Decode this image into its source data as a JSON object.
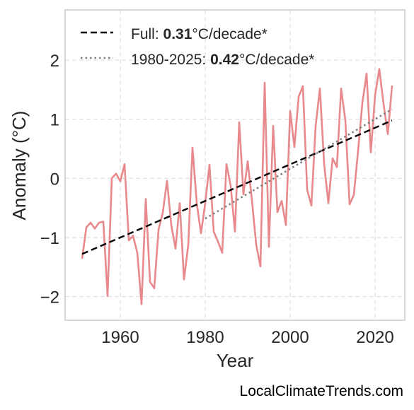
{
  "chart_data": {
    "type": "line",
    "xlabel": "Year",
    "ylabel": "Anomaly (°C)",
    "xlim": [
      1947,
      2027
    ],
    "ylim": [
      -2.4,
      2.85
    ],
    "xticks": [
      1960,
      1980,
      2000,
      2020
    ],
    "yticks": [
      -2,
      -1,
      0,
      1,
      2
    ],
    "grid": true,
    "legend_position": "top-left",
    "series": [
      {
        "kind": "anomaly",
        "color": "#e88a8d",
        "x": [
          1951,
          1952,
          1953,
          1954,
          1955,
          1956,
          1957,
          1958,
          1959,
          1960,
          1961,
          1962,
          1963,
          1964,
          1965,
          1966,
          1967,
          1968,
          1969,
          1970,
          1971,
          1972,
          1973,
          1974,
          1975,
          1976,
          1977,
          1978,
          1979,
          1980,
          1981,
          1982,
          1983,
          1984,
          1985,
          1986,
          1987,
          1988,
          1989,
          1990,
          1991,
          1992,
          1993,
          1994,
          1995,
          1996,
          1997,
          1998,
          1999,
          2000,
          2001,
          2002,
          2003,
          2004,
          2005,
          2006,
          2007,
          2008,
          2009,
          2010,
          2011,
          2012,
          2013,
          2014,
          2015,
          2016,
          2017,
          2018,
          2019,
          2020,
          2021,
          2022,
          2023,
          2024
        ],
        "values": [
          -1.36,
          -0.83,
          -0.75,
          -0.85,
          -0.75,
          -0.73,
          -1.99,
          0.0,
          0.08,
          -0.05,
          0.24,
          -1.05,
          -0.97,
          -1.26,
          -2.13,
          -0.35,
          -1.75,
          -1.86,
          -0.87,
          -0.58,
          -0.04,
          -0.79,
          -1.19,
          -0.42,
          -1.71,
          -1.13,
          0.52,
          -0.42,
          -0.93,
          -0.42,
          0.23,
          -0.9,
          -1.07,
          -1.26,
          0.24,
          -0.13,
          -0.9,
          0.95,
          -0.27,
          0.29,
          -0.37,
          -1.12,
          -1.49,
          1.62,
          -1.16,
          0.89,
          -0.57,
          -0.38,
          -0.79,
          1.14,
          0.53,
          1.38,
          1.56,
          -0.19,
          -0.46,
          0.88,
          1.52,
          0.25,
          -0.42,
          0.34,
          0.19,
          1.52,
          0.98,
          -0.44,
          -0.28,
          0.47,
          1.27,
          1.77,
          0.44,
          1.41,
          1.85,
          1.26,
          0.75,
          1.57
        ]
      },
      {
        "name": "Full: 0.31°C/decade*",
        "kind": "trend-full",
        "color": "#000000",
        "x": [
          1951,
          2024
        ],
        "values": [
          -1.28,
          0.98
        ]
      },
      {
        "name": "1980-2025: 0.42°C/decade*",
        "kind": "trend-recent",
        "color": "#808080",
        "x": [
          1980,
          2024
        ],
        "values": [
          -0.68,
          1.17
        ]
      }
    ],
    "legend": {
      "full_prefix": "Full: ",
      "full_value": "0.31",
      "full_suffix": "°C/decade*",
      "recent_prefix": "1980-2025: ",
      "recent_value": "0.42",
      "recent_suffix": "°C/decade*"
    },
    "credit": "LocalClimateTrends.com"
  }
}
